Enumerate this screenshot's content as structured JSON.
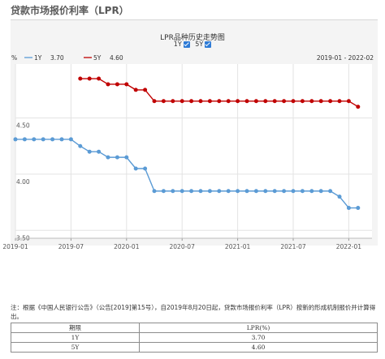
{
  "page": {
    "title": "贷款市场报价利率（LPR）"
  },
  "chart_data": {
    "type": "line",
    "title": "LPR品种历史走势图",
    "unit": "%",
    "date_range": "2019-01 - 2022-02",
    "x": [
      "2019-08",
      "2019-09",
      "2019-10",
      "2019-11",
      "2019-12",
      "2020-01",
      "2020-02",
      "2020-03",
      "2020-04",
      "2020-05",
      "2020-06",
      "2020-07",
      "2020-08",
      "2020-09",
      "2020-10",
      "2020-11",
      "2020-12",
      "2021-01",
      "2021-02",
      "2021-03",
      "2021-04",
      "2021-05",
      "2021-06",
      "2021-07",
      "2021-08",
      "2021-09",
      "2021-10",
      "2021-11",
      "2021-12",
      "2022-01",
      "2022-02"
    ],
    "x_ticks": [
      "2019-01",
      "2019-07",
      "2020-01",
      "2020-07",
      "2021-01",
      "2021-07",
      "2022-01"
    ],
    "y_ticks": [
      3.5,
      4.0,
      4.5
    ],
    "ylim": [
      3.43,
      4.98
    ],
    "grid": true,
    "series": [
      {
        "name": "1Y",
        "latest": "3.70",
        "color": "#5b9bd5",
        "x": [
          "2019-01",
          "2019-02",
          "2019-03",
          "2019-04",
          "2019-05",
          "2019-06",
          "2019-07",
          "2019-08",
          "2019-09",
          "2019-10",
          "2019-11",
          "2019-12",
          "2020-01",
          "2020-02",
          "2020-03",
          "2020-04",
          "2020-05",
          "2020-06",
          "2020-07",
          "2020-08",
          "2020-09",
          "2020-10",
          "2020-11",
          "2020-12",
          "2021-01",
          "2021-02",
          "2021-03",
          "2021-04",
          "2021-05",
          "2021-06",
          "2021-07",
          "2021-08",
          "2021-09",
          "2021-10",
          "2021-11",
          "2021-12",
          "2022-01",
          "2022-02"
        ],
        "values": [
          4.31,
          4.31,
          4.31,
          4.31,
          4.31,
          4.31,
          4.31,
          4.25,
          4.2,
          4.2,
          4.15,
          4.15,
          4.15,
          4.05,
          4.05,
          3.85,
          3.85,
          3.85,
          3.85,
          3.85,
          3.85,
          3.85,
          3.85,
          3.85,
          3.85,
          3.85,
          3.85,
          3.85,
          3.85,
          3.85,
          3.85,
          3.85,
          3.85,
          3.85,
          3.85,
          3.8,
          3.7,
          3.7
        ]
      },
      {
        "name": "5Y",
        "latest": "4.60",
        "color": "#c00000",
        "x": [
          "2019-08",
          "2019-09",
          "2019-10",
          "2019-11",
          "2019-12",
          "2020-01",
          "2020-02",
          "2020-03",
          "2020-04",
          "2020-05",
          "2020-06",
          "2020-07",
          "2020-08",
          "2020-09",
          "2020-10",
          "2020-11",
          "2020-12",
          "2021-01",
          "2021-02",
          "2021-03",
          "2021-04",
          "2021-05",
          "2021-06",
          "2021-07",
          "2021-08",
          "2021-09",
          "2021-10",
          "2021-11",
          "2021-12",
          "2022-01",
          "2022-02"
        ],
        "values": [
          4.85,
          4.85,
          4.85,
          4.8,
          4.8,
          4.8,
          4.75,
          4.75,
          4.65,
          4.65,
          4.65,
          4.65,
          4.65,
          4.65,
          4.65,
          4.65,
          4.65,
          4.65,
          4.65,
          4.65,
          4.65,
          4.65,
          4.65,
          4.65,
          4.65,
          4.65,
          4.65,
          4.65,
          4.65,
          4.65,
          4.6
        ]
      }
    ]
  },
  "toggles": [
    {
      "label": "1Y",
      "checked": true
    },
    {
      "label": "5Y",
      "checked": true
    }
  ],
  "note": "注：根据《中国人民银行公告》（公告[2019]第15号），自2019年8月20日起，贷款市场报价利率（LPR）按新的形成机制报价并计算得出。",
  "table": {
    "headers": [
      "期限",
      "LPR(%)"
    ],
    "rows": [
      {
        "term": "1Y",
        "rate": "3.70"
      },
      {
        "term": "5Y",
        "rate": "4.60"
      }
    ]
  }
}
